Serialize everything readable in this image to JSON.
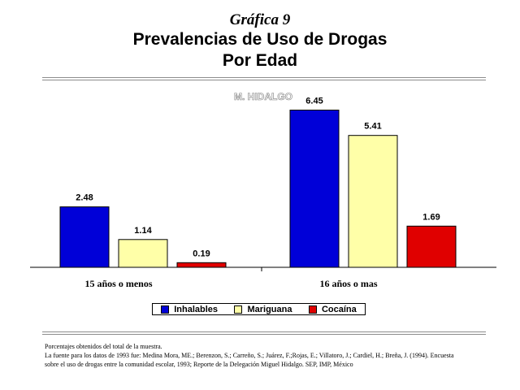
{
  "header": {
    "kicker": "Gráfica 9",
    "title_line1": "Prevalencias de Uso de Drogas",
    "title_line2": "Por Edad"
  },
  "colors": {
    "Inhalables": "#0000d8",
    "Mariguana": "#ffffa8",
    "Cocaína": "#e00000"
  },
  "chart_data": {
    "type": "bar",
    "title": "M. HIDALGO",
    "categories": [
      "15 años o menos",
      "16 años o mas"
    ],
    "series": [
      {
        "name": "Inhalables",
        "values": [
          2.48,
          6.45
        ]
      },
      {
        "name": "Mariguana",
        "values": [
          1.14,
          5.41
        ]
      },
      {
        "name": "Cocaína",
        "values": [
          0.19,
          1.69
        ]
      }
    ],
    "ylim": [
      0,
      7
    ],
    "grid": false,
    "legend": "bottom",
    "data_labels": true
  },
  "footer": {
    "note1": "Porcentajes obtenidos del total de la muestra.",
    "note2": "La fuente para los datos de 1993 fue: Medina Mora, ME.; Berenzon, S.; Carreño, S.; Juárez, F.;Rojas, E.; Villatoro, J.; Cardiel, H.; Breña, J. (1994). Encuesta",
    "note3": "sobre el uso de drogas entre la comunidad escolar, 1993; Reporte de la Delegación Miguel Hidalgo. SEP, IMP, México"
  }
}
